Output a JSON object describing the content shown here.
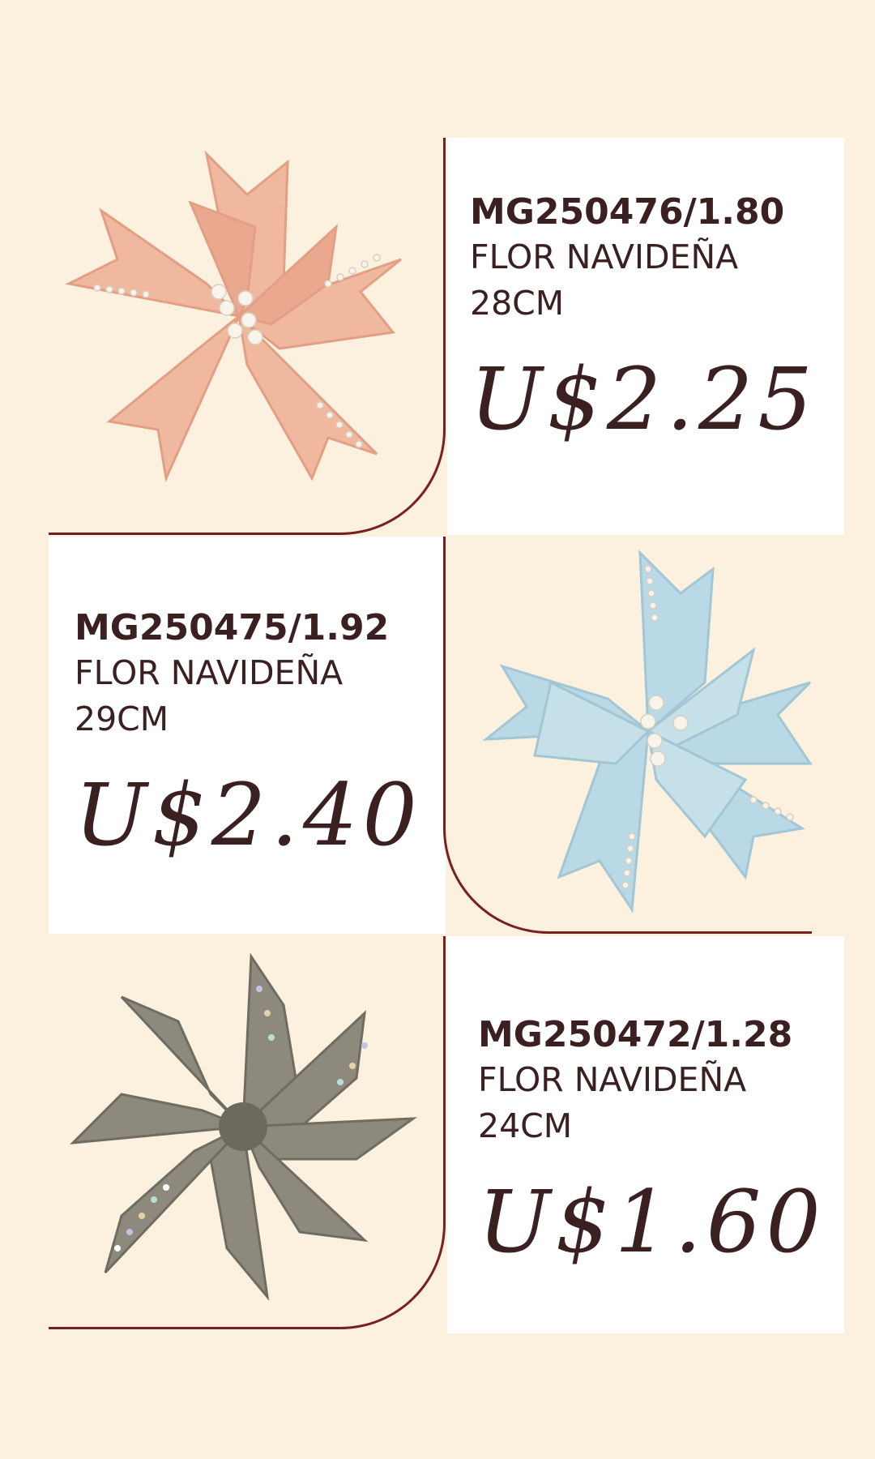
{
  "products": [
    {
      "code": "MG250476/1.80",
      "name": "FLOR NAVIDEÑA",
      "size": "28CM",
      "price": "U$2.25",
      "image": "pink-poinsettia-icon",
      "flower_color": "#f1b8a0"
    },
    {
      "code": "MG250475/1.92",
      "name": "FLOR NAVIDEÑA",
      "size": "29CM",
      "price": "U$2.40",
      "image": "blue-poinsettia-icon",
      "flower_color": "#b9d9e6"
    },
    {
      "code": "MG250472/1.28",
      "name": "FLOR NAVIDEÑA",
      "size": "24CM",
      "price": "U$1.60",
      "image": "grey-glitter-poinsettia-icon",
      "flower_color": "#8d8a7d"
    }
  ],
  "colors": {
    "background": "#fcf0de",
    "accent_line": "#7a1f1f",
    "text": "#3a2020"
  }
}
